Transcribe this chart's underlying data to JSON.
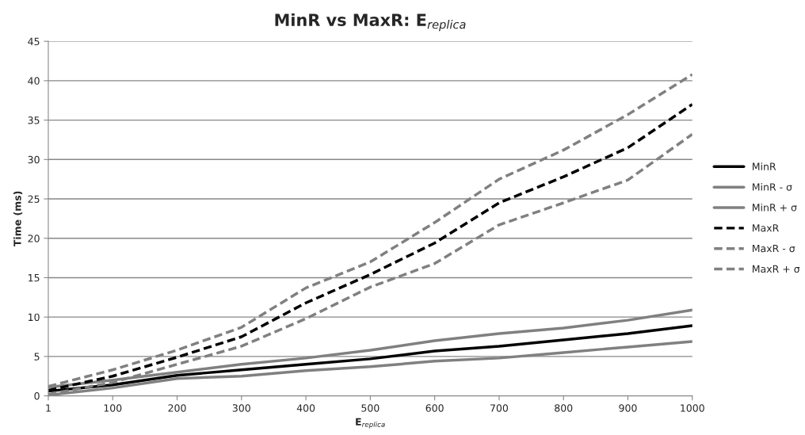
{
  "chart_data": {
    "type": "line",
    "title": "MinR vs MaxR: E$_{replica}$",
    "xlabel": "E$_{replica}$",
    "ylabel": "Time (ms)",
    "categories": [
      "1",
      "100",
      "200",
      "300",
      "400",
      "500",
      "600",
      "700",
      "800",
      "900",
      "1000"
    ],
    "series": [
      {
        "name": "MinR",
        "color": "#000000",
        "line_style": "solid",
        "values": [
          0.6,
          1.4,
          2.6,
          3.3,
          4.0,
          4.7,
          5.7,
          6.3,
          7.1,
          7.9,
          8.9
        ]
      },
      {
        "name": "MinR - σ",
        "color": "#808080",
        "line_style": "solid",
        "values": [
          0.1,
          1.0,
          2.2,
          2.5,
          3.2,
          3.7,
          4.4,
          4.8,
          5.5,
          6.2,
          6.9
        ]
      },
      {
        "name": "MinR + σ",
        "color": "#808080",
        "line_style": "solid",
        "values": [
          1.1,
          2.0,
          3.0,
          4.0,
          4.8,
          5.8,
          7.0,
          7.9,
          8.6,
          9.6,
          10.9
        ]
      },
      {
        "name": "MaxR",
        "color": "#000000",
        "line_style": "dashed",
        "values": [
          0.7,
          2.5,
          4.9,
          7.5,
          11.8,
          15.4,
          19.4,
          24.5,
          27.8,
          31.5,
          37.0
        ]
      },
      {
        "name": "MaxR - σ",
        "color": "#808080",
        "line_style": "dashed",
        "values": [
          0.2,
          1.7,
          4.0,
          6.3,
          9.8,
          13.8,
          16.8,
          21.7,
          24.5,
          27.4,
          33.2
        ]
      },
      {
        "name": "MaxR + σ",
        "color": "#808080",
        "line_style": "dashed",
        "values": [
          1.2,
          3.3,
          5.8,
          8.7,
          13.7,
          17.0,
          22.0,
          27.5,
          31.2,
          35.7,
          40.8
        ]
      }
    ],
    "ylim": [
      0,
      45
    ],
    "yticks": [
      0,
      5,
      10,
      15,
      20,
      25,
      30,
      35,
      40,
      45
    ],
    "grid": "y",
    "legend": "right"
  }
}
